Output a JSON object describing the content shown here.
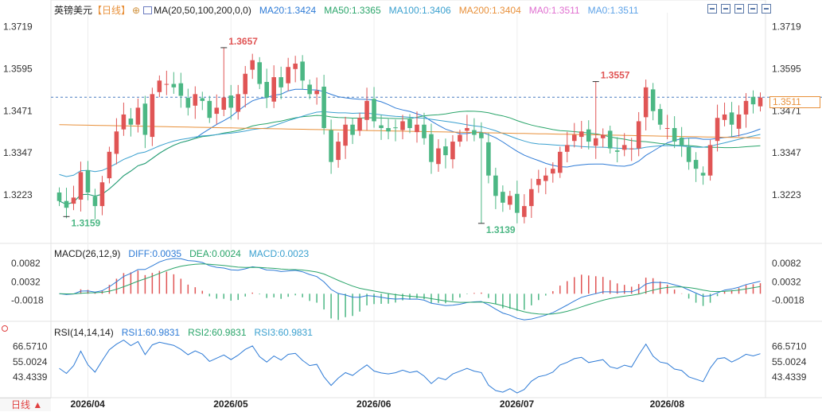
{
  "instrument": {
    "name": "英镑美元",
    "period": "【日线】",
    "symbol_icon": "settings-circle-icon"
  },
  "main_legend": {
    "ma_label": "MA(20,50,100,200,0,0)",
    "items": [
      {
        "text": "MA20:1.3424",
        "color": "#2e7bd6"
      },
      {
        "text": "MA50:1.3365",
        "color": "#2aa56a"
      },
      {
        "text": "MA100:1.3406",
        "color": "#3aa0cf"
      },
      {
        "text": "MA200:1.3404",
        "color": "#e8903a"
      },
      {
        "text": "MA0:1.3511",
        "color": "#e06fd0"
      },
      {
        "text": "MA0:1.3511",
        "color": "#5ea3e8"
      }
    ]
  },
  "toolbar": {
    "icons": [
      "crosshair-icon",
      "zoom-in-icon",
      "zoom-out-icon",
      "bar-type-icon",
      "fullscreen-icon"
    ]
  },
  "macd_legend": {
    "label": "MACD(26,12,9)",
    "items": [
      {
        "text": "DIFF:0.0035",
        "color": "#2e7bd6"
      },
      {
        "text": "DEA:0.0024",
        "color": "#2aa56a"
      },
      {
        "text": "MACD:0.0023",
        "color": "#3aa0cf"
      }
    ]
  },
  "rsi_legend": {
    "label": "RSI(14,14,14)",
    "items": [
      {
        "text": "RSI1:60.9831",
        "color": "#2e7bd6"
      },
      {
        "text": "RSI2:60.9831",
        "color": "#2aa56a"
      },
      {
        "text": "RSI3:60.9831",
        "color": "#3aa0cf"
      }
    ]
  },
  "period_selector": {
    "label": "日线 ▲"
  },
  "chart_data": {
    "type": "candlestick",
    "price_ticks": [
      1.3719,
      1.3595,
      1.3471,
      1.3347,
      1.3223
    ],
    "price_range": [
      1.308,
      1.376
    ],
    "current_price": "1.3511",
    "last_price": 1.3511,
    "annotations": [
      {
        "text": "1.3657",
        "value": 1.3657,
        "index": 23,
        "kind": "high"
      },
      {
        "text": "1.3557",
        "value": 1.3557,
        "index": 75,
        "kind": "high"
      },
      {
        "text": "1.3159",
        "value": 1.3159,
        "index": 1,
        "kind": "low"
      },
      {
        "text": "1.3139",
        "value": 1.3139,
        "index": 59,
        "kind": "low"
      }
    ],
    "x_ticks": [
      {
        "label": "2026/04",
        "index": 4
      },
      {
        "label": "2026/05",
        "index": 24
      },
      {
        "label": "2026/06",
        "index": 44
      },
      {
        "label": "2026/07",
        "index": 64
      },
      {
        "label": "2026/08",
        "index": 85
      }
    ],
    "close": [
      1.3205,
      1.3185,
      1.3215,
      1.329,
      1.323,
      1.319,
      1.326,
      1.335,
      1.341,
      1.346,
      1.343,
      1.348,
      1.34,
      1.352,
      1.356,
      1.355,
      1.354,
      1.3515,
      1.348,
      1.352,
      1.35,
      1.345,
      1.348,
      1.351,
      1.348,
      1.352,
      1.358,
      1.362,
      1.355,
      1.351,
      1.357,
      1.354,
      1.36,
      1.361,
      1.356,
      1.352,
      1.353,
      1.342,
      1.332,
      1.338,
      1.343,
      1.34,
      1.345,
      1.35,
      1.344,
      1.342,
      1.341,
      1.342,
      1.344,
      1.342,
      1.343,
      1.339,
      1.332,
      1.336,
      1.334,
      1.338,
      1.34,
      1.342,
      1.34,
      1.339,
      1.328,
      1.322,
      1.32,
      1.322,
      1.317,
      1.319,
      1.324,
      1.327,
      1.328,
      1.33,
      1.335,
      1.337,
      1.34,
      1.341,
      1.338,
      1.339,
      1.34,
      1.336,
      1.335,
      1.337,
      1.336,
      1.344,
      1.354,
      1.347,
      1.343,
      1.342,
      1.338,
      1.337,
      1.332,
      1.33,
      1.328,
      1.337,
      1.345,
      1.346,
      1.343,
      1.346,
      1.35,
      1.349,
      1.351
    ],
    "macd": {
      "ticks": [
        0.0082,
        0.0032,
        -0.0018
      ],
      "range": [
        -0.007,
        0.011
      ],
      "diff": 0.0035,
      "dea": 0.0024,
      "macd": 0.0023
    },
    "rsi": {
      "ticks": [
        66.571,
        55.0024,
        43.4339
      ],
      "range": [
        29,
        76
      ],
      "rsi1": 60.9831
    }
  }
}
